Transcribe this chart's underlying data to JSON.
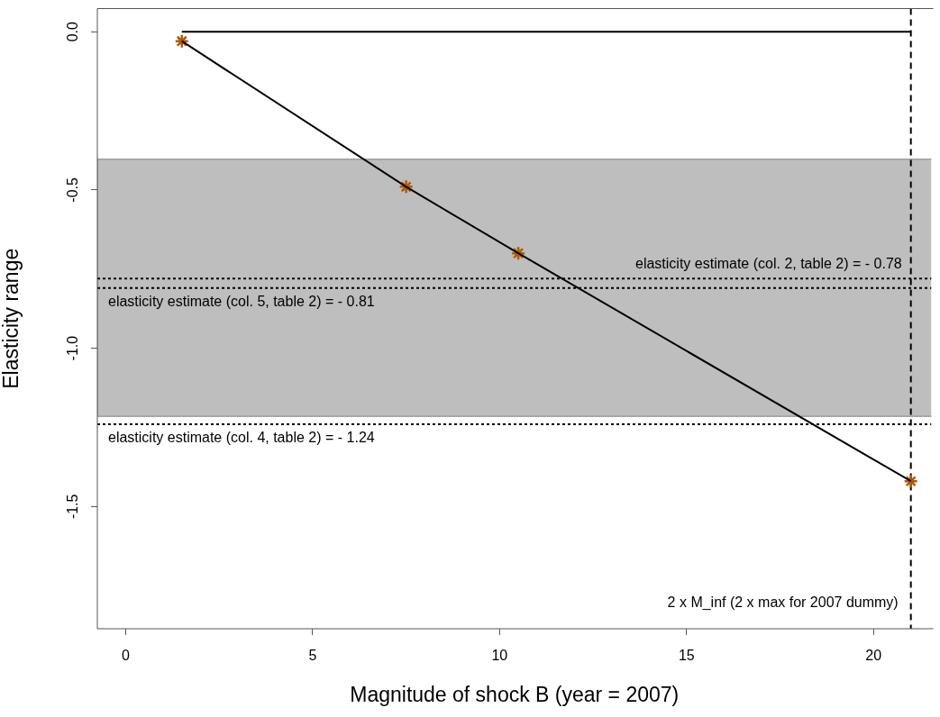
{
  "chart_data": {
    "type": "line",
    "xlabel": "Magnitude of shock B (year = 2007)",
    "ylabel": "Elasticity range",
    "xlim": [
      -0.76,
      21.55
    ],
    "xticks": [
      0,
      5,
      10,
      15,
      20
    ],
    "ylim": [
      -1.886,
      0.073
    ],
    "yticks": [
      {
        "value": 0,
        "label": "0.0"
      },
      -0.5,
      {
        "value": -1,
        "label": "-1.0"
      },
      -1.5
    ],
    "grid": false,
    "legend": false,
    "series": [
      {
        "color": "#000000",
        "marker": "none",
        "x": [
          1.5,
          7.5,
          10.5,
          21
        ],
        "values": [
          -0.03,
          -0.49,
          -0.7,
          -1.42
        ]
      },
      {
        "type": "scatter",
        "color": "#b05a00",
        "marker": "cross",
        "x": [
          1.5,
          7.5,
          10.5,
          21
        ],
        "values": [
          -0.03,
          -0.49,
          -0.7,
          -1.42
        ]
      },
      {
        "color": "#000000",
        "marker": "none",
        "x": [
          1.5,
          21
        ],
        "values": [
          0,
          0
        ]
      }
    ],
    "bands": [
      {
        "axis": "y",
        "from": -1.215,
        "to": -0.403,
        "color": "#bebebe"
      }
    ],
    "ref_lines": [
      {
        "axis": "y",
        "value": -0.78,
        "label": "elasticity estimate (col. 2, table 2) = - 0.78",
        "line_style": "dotted"
      },
      {
        "axis": "y",
        "value": -0.81,
        "label": "elasticity estimate (col. 5, table 2) = - 0.81",
        "line_style": "dotted"
      },
      {
        "axis": "y",
        "value": -1.24,
        "label": "elasticity estimate (col. 4, table 2) = - 1.24",
        "line_style": "dotted"
      },
      {
        "axis": "x",
        "value": 21,
        "label": "2 x M_inf (2 x max for 2007 dummy)",
        "line_style": "dashed"
      }
    ]
  }
}
